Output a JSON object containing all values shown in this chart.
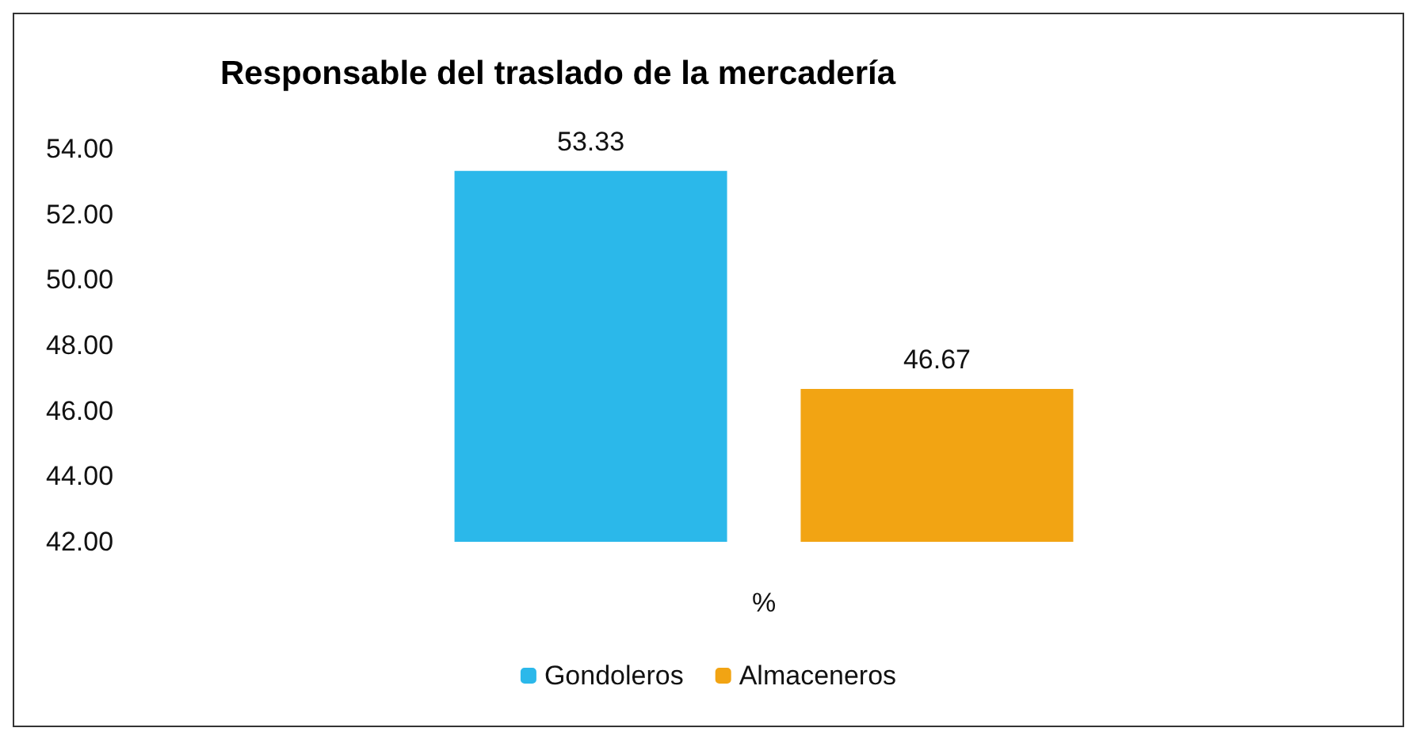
{
  "chart_data": {
    "type": "bar",
    "title": "Responsable del traslado de la mercadería",
    "xlabel": "%",
    "categories": [
      null
    ],
    "series": [
      {
        "name": "Gondoleros",
        "color": "#2bb8ea",
        "values": [
          53.33
        ]
      },
      {
        "name": "Almaceneros",
        "color": "#f2a413",
        "values": [
          46.67
        ]
      }
    ],
    "ylim": [
      42,
      54
    ],
    "yticks": [
      {
        "value": 42,
        "label": "42.00"
      },
      {
        "value": 44,
        "label": "44.00"
      },
      {
        "value": 46,
        "label": "46.00"
      },
      {
        "value": 48,
        "label": "48.00"
      },
      {
        "value": 50,
        "label": "50.00"
      },
      {
        "value": 52,
        "label": "52.00"
      },
      {
        "value": 54,
        "label": "54.00"
      }
    ],
    "data_labels": true,
    "grid": false,
    "legend": "bottom"
  }
}
